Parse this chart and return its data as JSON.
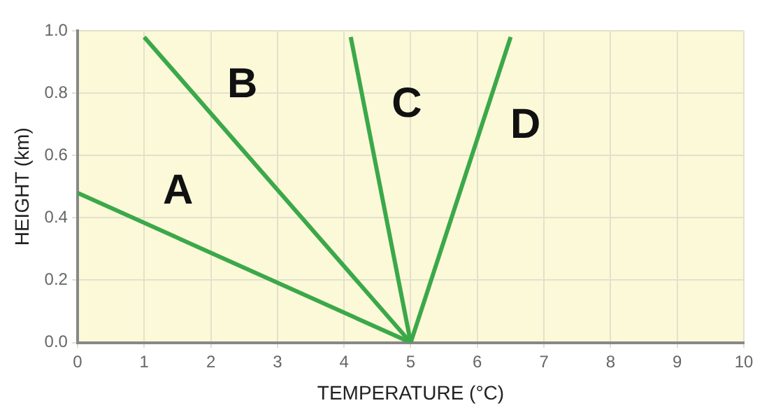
{
  "chart_data": {
    "type": "line",
    "xlabel": "TEMPERATURE (°C)",
    "ylabel": "HEIGHT (km)",
    "xlim": [
      0,
      10
    ],
    "xticks": [
      0,
      1,
      2,
      3,
      4,
      5,
      6,
      7,
      8,
      9,
      10
    ],
    "ylim": [
      0,
      1.0
    ],
    "yticks": [
      {
        "value": 0,
        "label": "0.0"
      },
      {
        "value": 0.2,
        "label": "0.2"
      },
      {
        "value": 0.4,
        "label": "0.4"
      },
      {
        "value": 0.6,
        "label": "0.6"
      },
      {
        "value": 0.8,
        "label": "0.8"
      },
      {
        "value": 1.0,
        "label": "1.0"
      }
    ],
    "grid": true,
    "legend": false,
    "marker": "none",
    "line_style": "solid",
    "series": [
      {
        "name": "A",
        "color": "#3ba84a",
        "x": [
          0,
          5
        ],
        "values": [
          0.48,
          0
        ]
      },
      {
        "name": "B",
        "color": "#3ba84a",
        "x": [
          1,
          5
        ],
        "values": [
          0.98,
          0
        ]
      },
      {
        "name": "C",
        "color": "#3ba84a",
        "x": [
          4.1,
          5
        ],
        "values": [
          0.98,
          0
        ]
      },
      {
        "name": "D",
        "color": "#3ba84a",
        "x": [
          5,
          6.5
        ],
        "values": [
          0,
          0.98
        ]
      }
    ]
  }
}
